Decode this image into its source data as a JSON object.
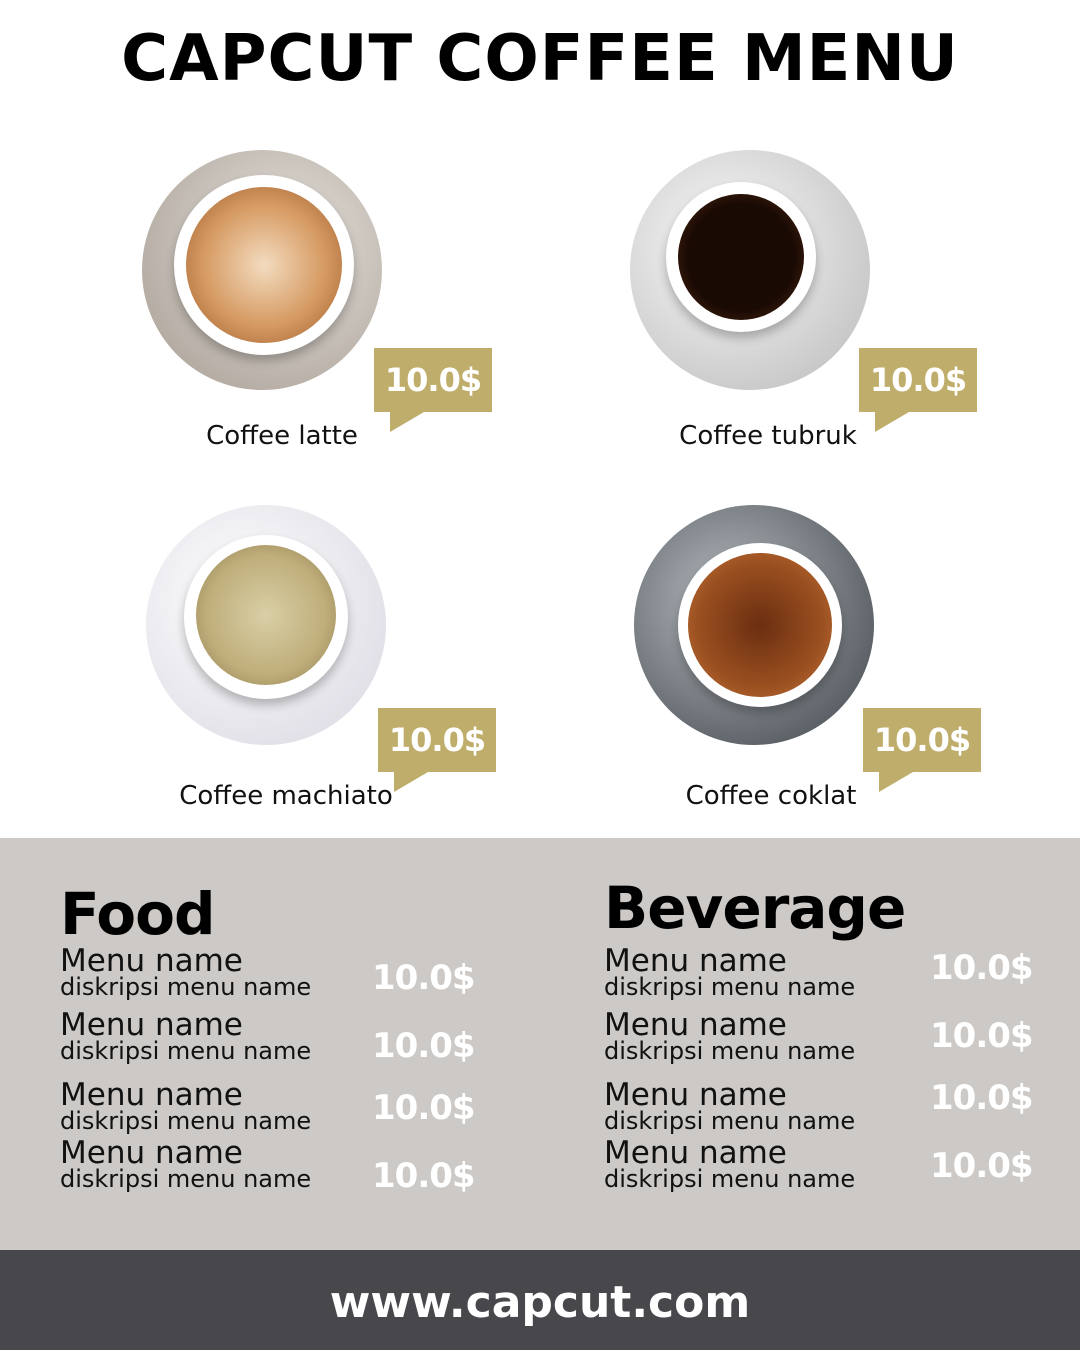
{
  "title": "CAPCUT COFFEE MENU",
  "products": [
    {
      "name": "Coffee latte",
      "price": "10.0$"
    },
    {
      "name": "Coffee tubruk",
      "price": "10.0$"
    },
    {
      "name": "Coffee machiato",
      "price": "10.0$"
    },
    {
      "name": "Coffee coklat",
      "price": "10.0$"
    }
  ],
  "food": {
    "title": "Food",
    "items": [
      {
        "name": "Menu name",
        "desc": "diskripsi menu name",
        "price": "10.0$"
      },
      {
        "name": "Menu name",
        "desc": "diskripsi menu name",
        "price": "10.0$"
      },
      {
        "name": "Menu name",
        "desc": "diskripsi menu name",
        "price": "10.0$"
      },
      {
        "name": "Menu name",
        "desc": "diskripsi menu name",
        "price": "10.0$"
      }
    ]
  },
  "beverage": {
    "title": "Beverage",
    "items": [
      {
        "name": "Menu name",
        "desc": "diskripsi menu name",
        "price": "10.0$"
      },
      {
        "name": "Menu name",
        "desc": "diskripsi menu name",
        "price": "10.0$"
      },
      {
        "name": "Menu name",
        "desc": "diskripsi menu name",
        "price": "10.0$"
      },
      {
        "name": "Menu name",
        "desc": "diskripsi menu name",
        "price": "10.0$"
      }
    ]
  },
  "footer": "www.capcut.com",
  "colors": {
    "accent": "#BFAD6B",
    "panel": "#CCC9C6",
    "footer": "#48474B"
  }
}
